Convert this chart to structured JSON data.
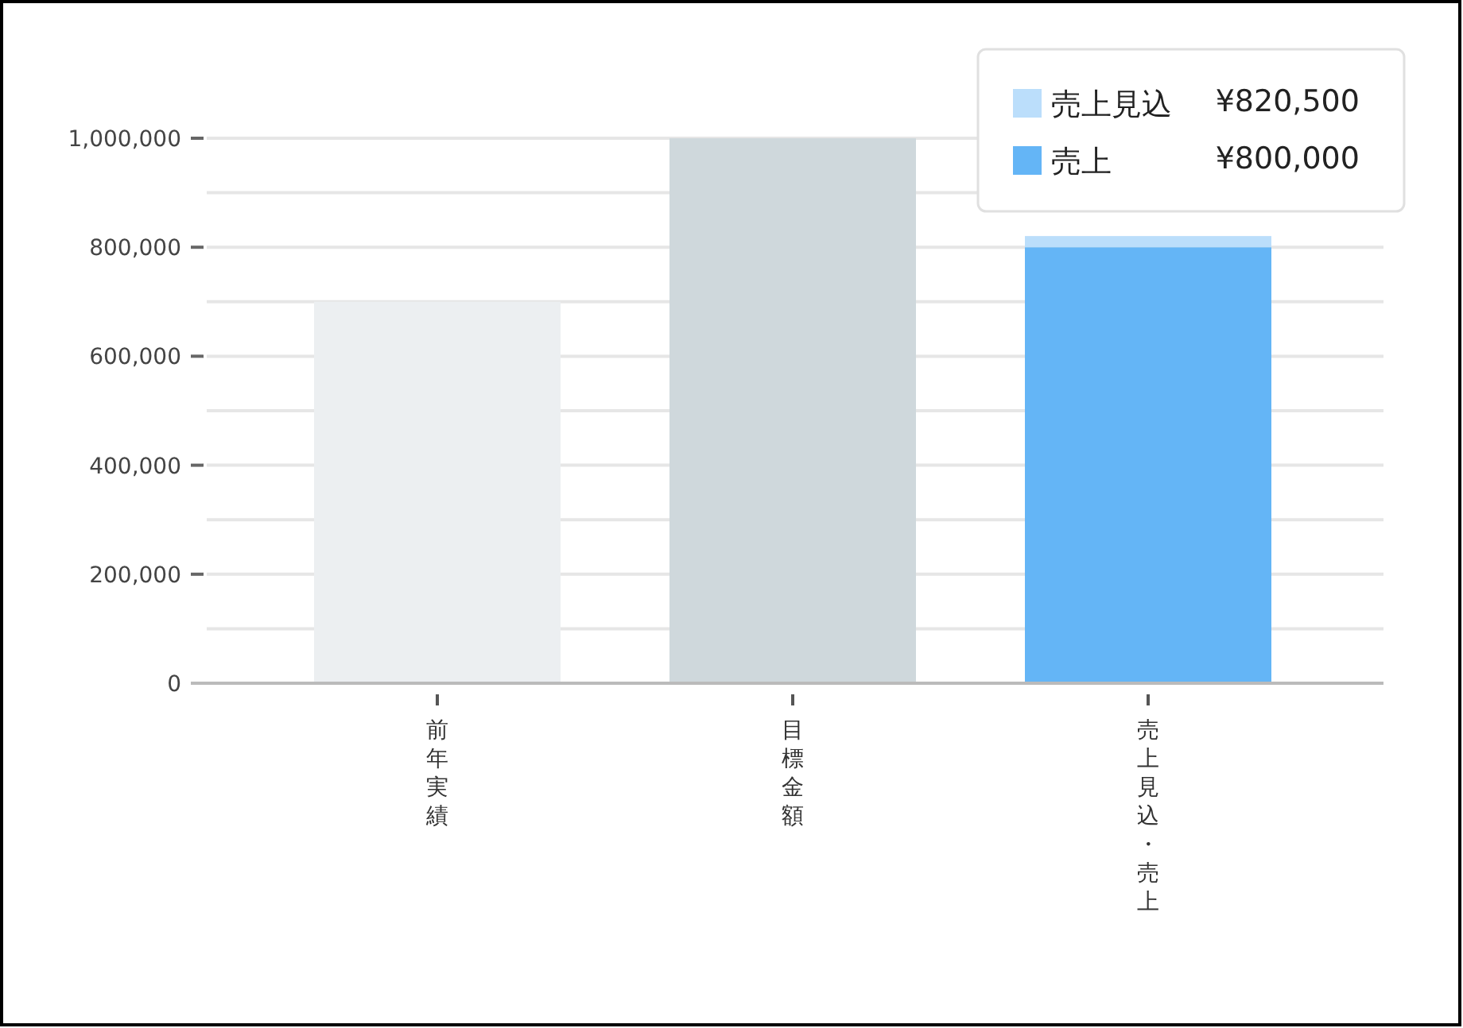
{
  "chart_data": {
    "type": "bar",
    "stacked": true,
    "categories": [
      "前年実績",
      "目標金額",
      "売上見込・売上"
    ],
    "series": [
      {
        "colors": [
          "#eceff1",
          "#cfd8dc",
          null
        ],
        "values": [
          700000,
          1000000,
          null
        ]
      },
      {
        "name": "売上",
        "color": "#64b5f6",
        "values": [
          null,
          null,
          800000
        ]
      },
      {
        "name": "売上見込",
        "color": "#bbdefb",
        "values": [
          null,
          null,
          20500
        ]
      }
    ],
    "ylim": [
      0,
      1000000
    ],
    "yticks": [
      0,
      {
        "value": 100000,
        "label": null
      },
      {
        "value": 200000,
        "label": "200,000"
      },
      {
        "value": 300000,
        "label": null
      },
      {
        "value": 400000,
        "label": "400,000"
      },
      {
        "value": 500000,
        "label": null
      },
      {
        "value": 600000,
        "label": "600,000"
      },
      {
        "value": 700000,
        "label": null
      },
      {
        "value": 800000,
        "label": "800,000"
      },
      {
        "value": 900000,
        "label": null
      },
      {
        "value": 1000000,
        "label": "1,000,000"
      }
    ],
    "grid": "y",
    "legend": "top right",
    "annotations": [
      "¥820,500",
      "¥800,000"
    ]
  }
}
